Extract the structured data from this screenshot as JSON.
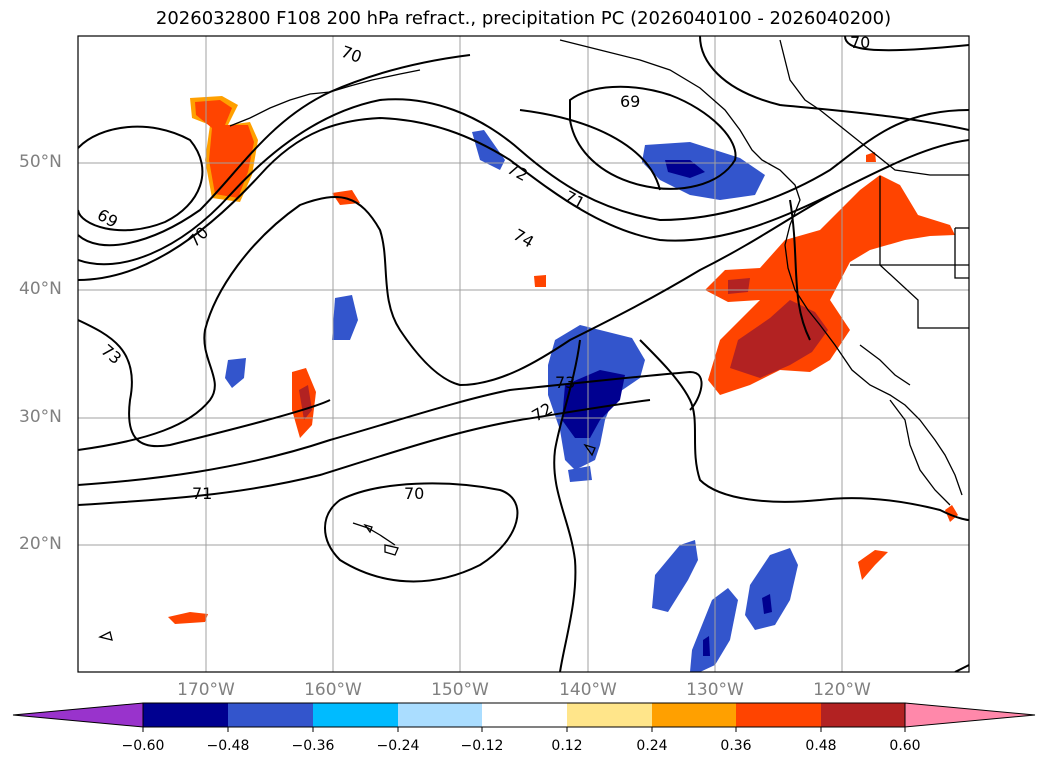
{
  "title": "2026032800 F108 200 hPa refract., precipitation PC (2026040100 - 2026040200)",
  "map": {
    "lat_labels": [
      "50°N",
      "40°N",
      "30°N",
      "20°N"
    ],
    "lon_labels": [
      "170°W",
      "160°W",
      "150°W",
      "140°W",
      "130°W",
      "120°W"
    ],
    "contour_labels": [
      "69",
      "70",
      "69",
      "72",
      "71",
      "70",
      "74",
      "73",
      "73",
      "72",
      "71",
      "70",
      "70"
    ],
    "colors": {
      "land_outline": "#000000",
      "grid": "#a0a0a0",
      "contour": "#000000"
    }
  },
  "colorbar": {
    "ticks": [
      "−0.60",
      "−0.48",
      "−0.36",
      "−0.24",
      "−0.12",
      "0.12",
      "0.24",
      "0.36",
      "0.48",
      "0.60"
    ],
    "colors": [
      "#9933cc",
      "#000090",
      "#3355cc",
      "#00bbff",
      "#aaddff",
      "#ffffff",
      "#ffe58a",
      "#ffa000",
      "#ff4400",
      "#b22222",
      "#ff88aa"
    ]
  }
}
